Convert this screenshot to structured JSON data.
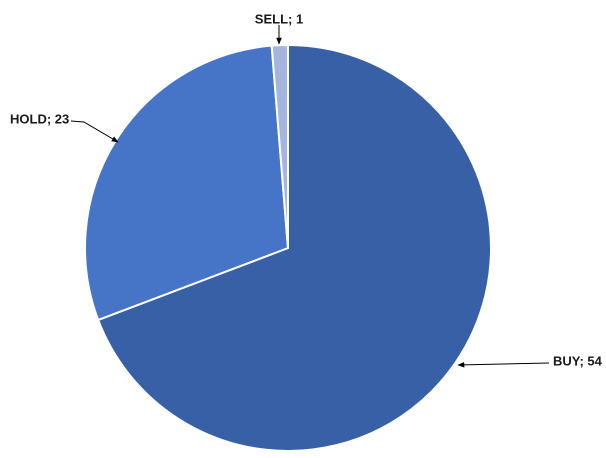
{
  "chart_data": {
    "type": "pie",
    "slices": [
      {
        "label": "BUY",
        "value": 54,
        "color": "#3760A6"
      },
      {
        "label": "HOLD",
        "value": 23,
        "color": "#4674C7"
      },
      {
        "label": "SELL",
        "value": 1,
        "color": "#A5B5DE"
      }
    ],
    "data_labels": [
      "BUY; 54",
      "HOLD; 23",
      "SELL; 1"
    ],
    "legend": "none"
  }
}
